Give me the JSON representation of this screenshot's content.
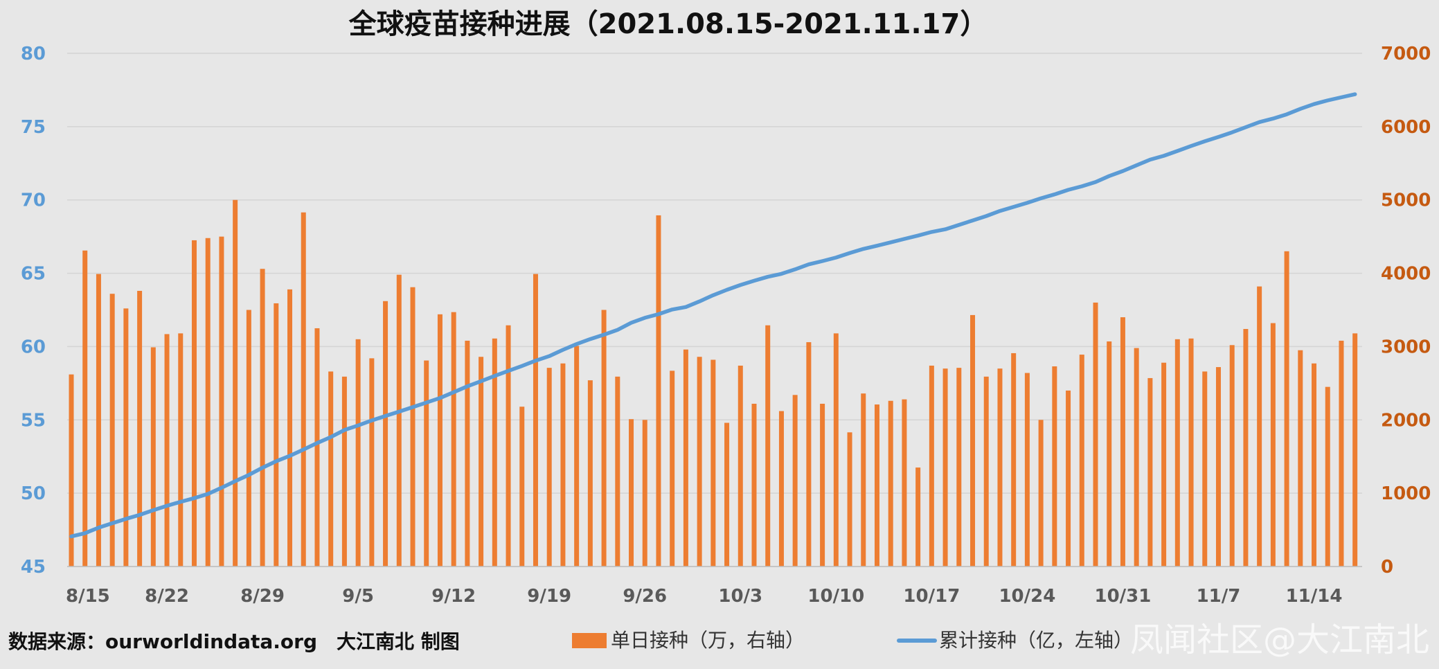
{
  "chart_data": {
    "type": "bar",
    "title": "全球疫苗接种进展（2021.08.15-2021.11.17）",
    "x_ticks": [
      "8/15",
      "8/22",
      "8/29",
      "9/5",
      "9/12",
      "9/19",
      "9/26",
      "10/3",
      "10/10",
      "10/17",
      "10/24",
      "10/31",
      "11/7",
      "11/14"
    ],
    "y_left": {
      "ticks": [
        "80",
        "75",
        "70",
        "65",
        "60",
        "55",
        "50",
        "45"
      ],
      "min": 45,
      "max": 80,
      "color": "#5b9bd5"
    },
    "y_right": {
      "ticks": [
        "7000",
        "6000",
        "5000",
        "4000",
        "3000",
        "2000",
        "1000",
        "0"
      ],
      "min": 0,
      "max": 7000,
      "color": "#c55a11"
    },
    "x_dates": [
      "2021-08-15",
      "2021-08-16",
      "2021-08-17",
      "2021-08-18",
      "2021-08-19",
      "2021-08-20",
      "2021-08-21",
      "2021-08-22",
      "2021-08-23",
      "2021-08-24",
      "2021-08-25",
      "2021-08-26",
      "2021-08-27",
      "2021-08-28",
      "2021-08-29",
      "2021-08-30",
      "2021-08-31",
      "2021-09-01",
      "2021-09-02",
      "2021-09-03",
      "2021-09-04",
      "2021-09-05",
      "2021-09-06",
      "2021-09-07",
      "2021-09-08",
      "2021-09-09",
      "2021-09-10",
      "2021-09-11",
      "2021-09-12",
      "2021-09-13",
      "2021-09-14",
      "2021-09-15",
      "2021-09-16",
      "2021-09-17",
      "2021-09-18",
      "2021-09-19",
      "2021-09-20",
      "2021-09-21",
      "2021-09-22",
      "2021-09-23",
      "2021-09-24",
      "2021-09-25",
      "2021-09-26",
      "2021-09-27",
      "2021-09-28",
      "2021-09-29",
      "2021-09-30",
      "2021-10-01",
      "2021-10-02",
      "2021-10-03",
      "2021-10-04",
      "2021-10-05",
      "2021-10-06",
      "2021-10-07",
      "2021-10-08",
      "2021-10-09",
      "2021-10-10",
      "2021-10-11",
      "2021-10-12",
      "2021-10-13",
      "2021-10-14",
      "2021-10-15",
      "2021-10-16",
      "2021-10-17",
      "2021-10-18",
      "2021-10-19",
      "2021-10-20",
      "2021-10-21",
      "2021-10-22",
      "2021-10-23",
      "2021-10-24",
      "2021-10-25",
      "2021-10-26",
      "2021-10-27",
      "2021-10-28",
      "2021-10-29",
      "2021-10-30",
      "2021-10-31",
      "2021-11-01",
      "2021-11-02",
      "2021-11-03",
      "2021-11-04",
      "2021-11-05",
      "2021-11-06",
      "2021-11-07",
      "2021-11-08",
      "2021-11-09",
      "2021-11-10",
      "2021-11-11",
      "2021-11-12",
      "2021-11-13",
      "2021-11-14",
      "2021-11-15",
      "2021-11-16",
      "2021-11-17"
    ],
    "series": [
      {
        "name": "单日接种（万，右轴）",
        "type": "bar",
        "axis": "right",
        "color": "#ed7d31",
        "values": [
          2620,
          4310,
          3990,
          3720,
          3520,
          3760,
          2990,
          3170,
          3180,
          4450,
          4480,
          4500,
          5000,
          3500,
          4060,
          3590,
          3780,
          4830,
          3250,
          2660,
          2590,
          3100,
          2840,
          3620,
          3980,
          3810,
          2810,
          3440,
          3470,
          3080,
          2860,
          3110,
          3290,
          2180,
          3990,
          2710,
          2770,
          3010,
          2540,
          3500,
          2590,
          2010,
          2000,
          4790,
          2670,
          2960,
          2860,
          2820,
          1960,
          2740,
          2220,
          3290,
          2120,
          2340,
          3060,
          2220,
          3180,
          1830,
          2360,
          2210,
          2260,
          2280,
          1350,
          2740,
          2700,
          2710,
          3430,
          2590,
          2700,
          2910,
          2640,
          2000,
          2730,
          2400,
          2890,
          3600,
          3070,
          3400,
          2980,
          2570,
          2780,
          3100,
          3110,
          2660,
          2720,
          3020,
          3240,
          3820,
          3320,
          4300,
          2950,
          2770,
          2450,
          3080,
          3180
        ]
      },
      {
        "name": "累计接种（亿，左轴）",
        "type": "line",
        "axis": "left",
        "color": "#5b9bd5",
        "values": [
          47.05,
          47.27,
          47.65,
          47.95,
          48.25,
          48.52,
          48.84,
          49.14,
          49.41,
          49.66,
          49.95,
          50.37,
          50.82,
          51.25,
          51.74,
          52.18,
          52.55,
          52.98,
          53.42,
          53.83,
          54.31,
          54.62,
          54.96,
          55.27,
          55.56,
          55.87,
          56.18,
          56.49,
          56.89,
          57.29,
          57.64,
          58.0,
          58.34,
          58.68,
          59.04,
          59.35,
          59.78,
          60.17,
          60.51,
          60.81,
          61.14,
          61.62,
          61.96,
          62.21,
          62.53,
          62.7,
          63.08,
          63.5,
          63.87,
          64.2,
          64.49,
          64.76,
          64.96,
          65.27,
          65.61,
          65.83,
          66.07,
          66.38,
          66.66,
          66.88,
          67.11,
          67.34,
          67.57,
          67.82,
          68.0,
          68.3,
          68.6,
          68.9,
          69.25,
          69.53,
          69.8,
          70.11,
          70.38,
          70.69,
          70.93,
          71.22,
          71.63,
          71.97,
          72.36,
          72.75,
          73.01,
          73.34,
          73.68,
          74.0,
          74.3,
          74.61,
          74.96,
          75.31,
          75.55,
          75.84,
          76.21,
          76.54,
          76.79,
          77.0,
          77.21
        ]
      }
    ],
    "grid": true,
    "legend_position": "bottom"
  },
  "footer": {
    "source": "数据来源：ourworldindata.org　大江南北 制图"
  },
  "watermark": "凤闻社区@大江南北"
}
